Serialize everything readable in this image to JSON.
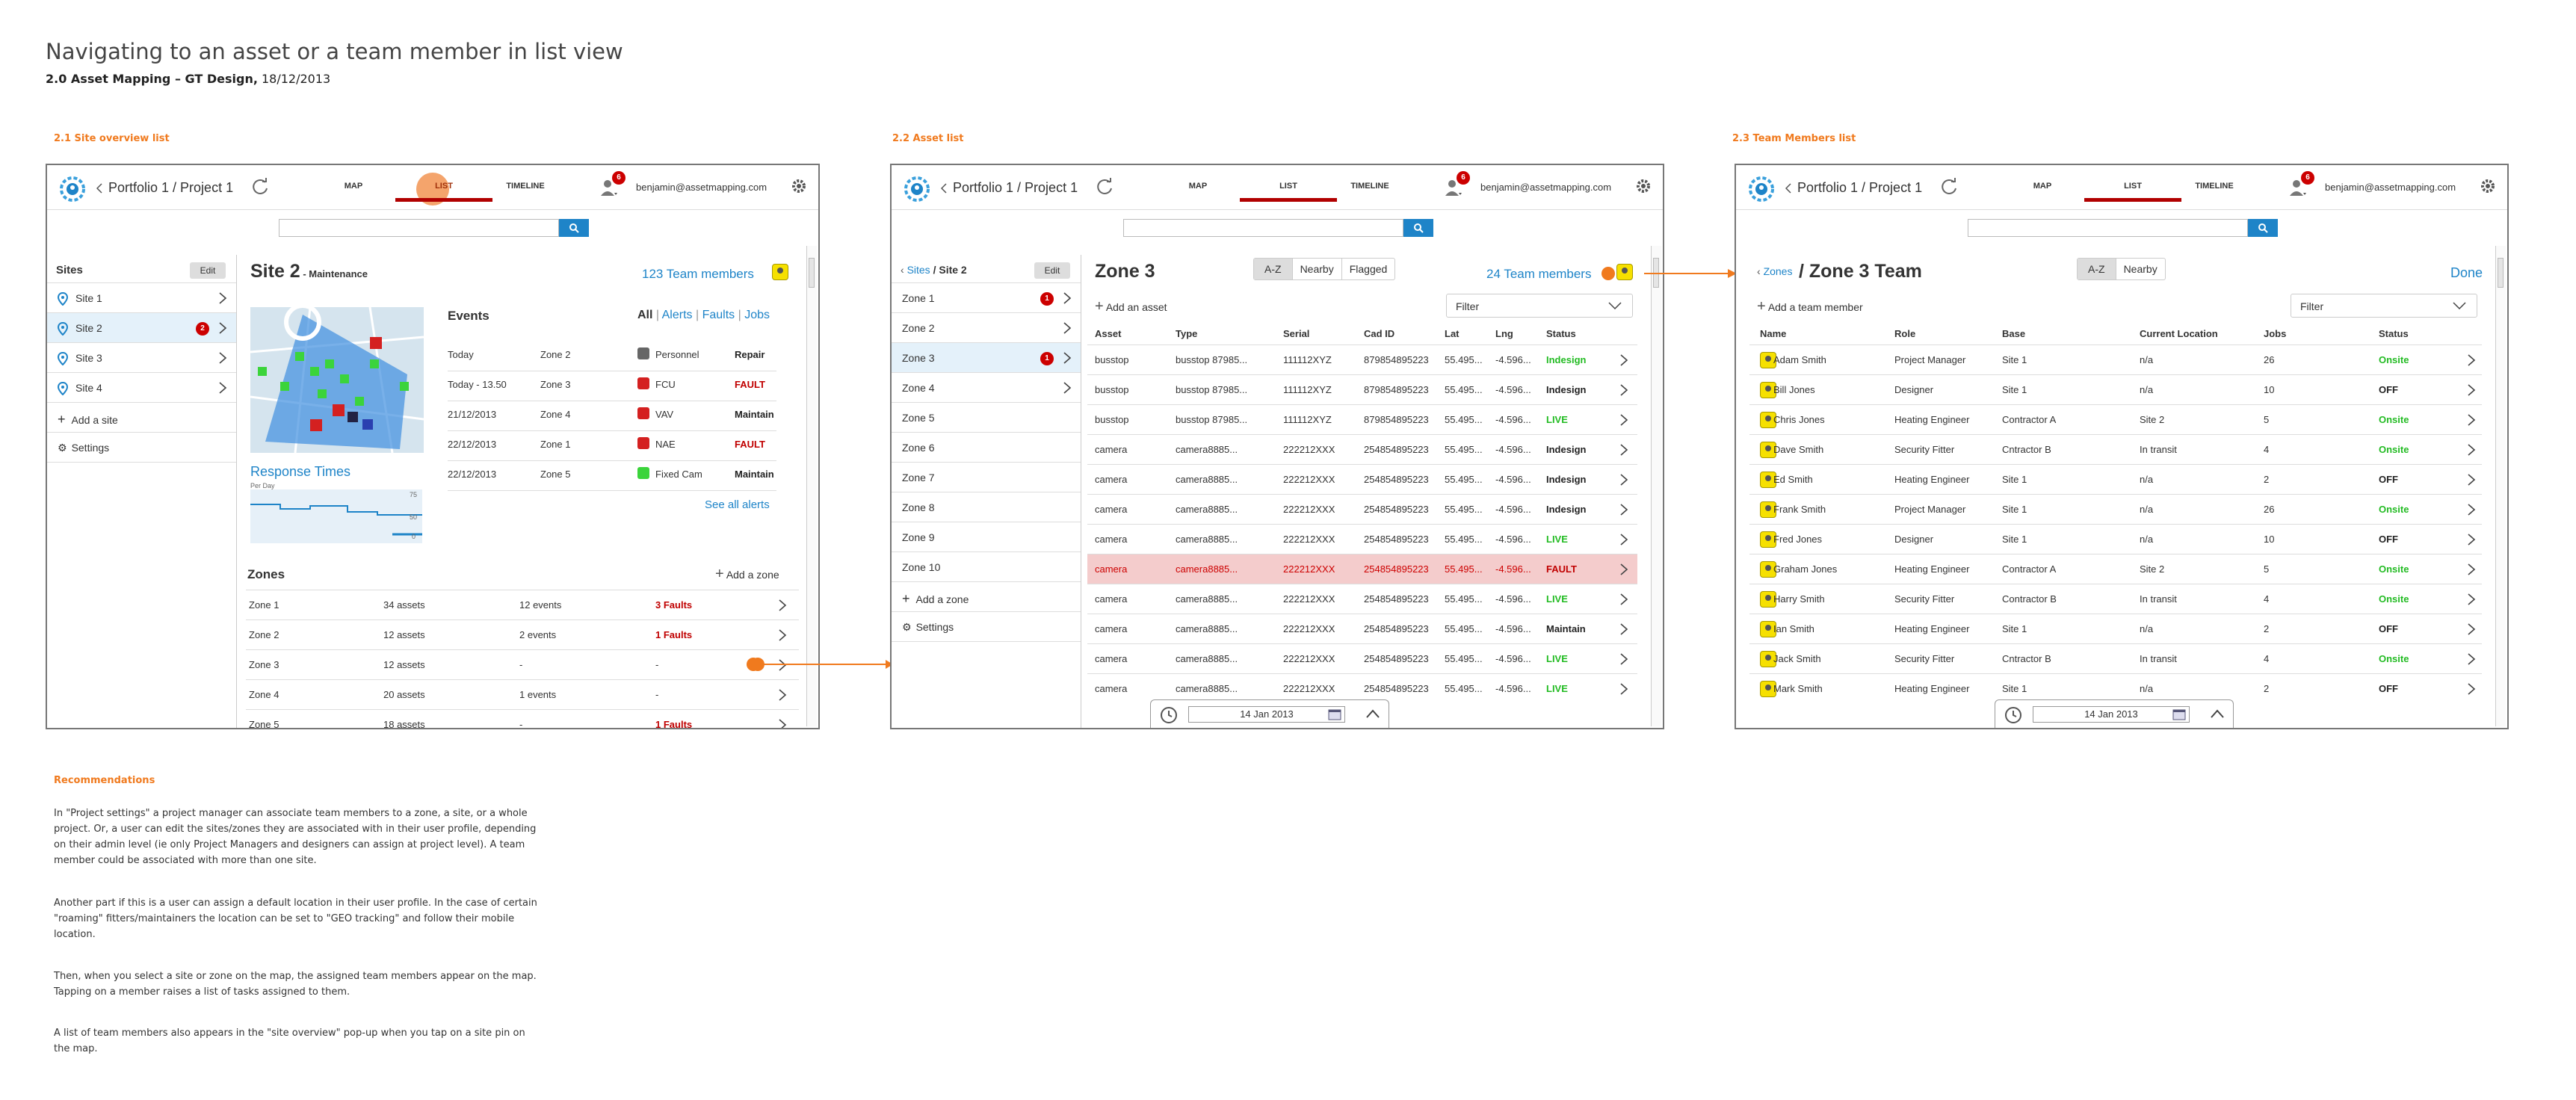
{
  "page": {
    "title": "Navigating to an asset or a team member in list view",
    "subtitle_bold": "2.0 Asset Mapping – GT Design,",
    "subtitle_rest": " 18/12/2013"
  },
  "sections": {
    "s1": "2.1 Site overview list",
    "s2": "2.2 Asset list",
    "s3": "2.3 Team Members list"
  },
  "topbar": {
    "breadcrumb": "Portfolio 1 / Project 1",
    "tab_map": "MAP",
    "tab_list": "LIST",
    "tab_timeline": "TIMELINE",
    "user": "benjamin@assetmapping.com",
    "notif_count": "6"
  },
  "win1": {
    "sites_header": "Sites",
    "edit": "Edit",
    "sites": [
      {
        "label": "Site 1",
        "badge": ""
      },
      {
        "label": "Site 2",
        "badge": "2"
      },
      {
        "label": "Site 3",
        "badge": ""
      },
      {
        "label": "Site 4",
        "badge": ""
      }
    ],
    "add_site": "Add a site",
    "settings": "Settings",
    "site_title": "Site 2",
    "site_status": " - Maintenance",
    "team_members": "123 Team members",
    "events_title": "Events",
    "filter_all": "All",
    "filter_alerts": "Alerts",
    "filter_faults": "Faults",
    "filter_jobs": "Jobs",
    "filter_sep": "|",
    "events": [
      {
        "date": "Today",
        "zone": "Zone 2",
        "type": "Personnel",
        "action": "Repair",
        "cls": "repair"
      },
      {
        "date": "Today - 13.50",
        "zone": "Zone 3",
        "type": "FCU",
        "action": "FAULT",
        "cls": "fault"
      },
      {
        "date": "21/12/2013",
        "zone": "Zone 4",
        "type": "VAV",
        "action": "Maintain",
        "cls": "maintain"
      },
      {
        "date": "22/12/2013",
        "zone": "Zone 1",
        "type": "NAE",
        "action": "FAULT",
        "cls": "fault"
      },
      {
        "date": "22/12/2013",
        "zone": "Zone 5",
        "type": "Fixed Cam",
        "action": "Maintain",
        "cls": "maintain"
      }
    ],
    "see_all": "See all alerts",
    "response_times": "Response Times",
    "per_day": "Per Day",
    "y_ticks": [
      "75",
      "50",
      "0"
    ],
    "zones_title": "Zones",
    "add_zone": "Add a zone",
    "zones": [
      {
        "name": "Zone 1",
        "assets": "34 assets",
        "events": "12 events",
        "faults": "3 Faults"
      },
      {
        "name": "Zone 2",
        "assets": "12 assets",
        "events": "2 events",
        "faults": "1 Faults"
      },
      {
        "name": "Zone 3",
        "assets": "12 assets",
        "events": "-",
        "faults": "-"
      },
      {
        "name": "Zone 4",
        "assets": "20 assets",
        "events": "1 events",
        "faults": "-"
      },
      {
        "name": "Zone 5",
        "assets": "18 assets",
        "events": "-",
        "faults": "1 Faults"
      }
    ]
  },
  "win2": {
    "crumb_sites": "Sites",
    "crumb_site": " / Site 2",
    "edit": "Edit",
    "zones": [
      {
        "label": "Zone 1",
        "badge": "1",
        "chev": true
      },
      {
        "label": "Zone 2",
        "badge": "",
        "chev": true
      },
      {
        "label": "Zone 3",
        "badge": "1",
        "chev": true
      },
      {
        "label": "Zone 4",
        "badge": "",
        "chev": true
      },
      {
        "label": "Zone 5",
        "badge": "",
        "chev": false
      },
      {
        "label": "Zone 6",
        "badge": "",
        "chev": false
      },
      {
        "label": "Zone 7",
        "badge": "",
        "chev": false
      },
      {
        "label": "Zone 8",
        "badge": "",
        "chev": false
      },
      {
        "label": "Zone 9",
        "badge": "",
        "chev": false
      },
      {
        "label": "Zone 10",
        "badge": "",
        "chev": false
      }
    ],
    "add_zone": "Add a zone",
    "settings": "Settings",
    "zone_title": "Zone 3",
    "seg": [
      "A-Z",
      "Nearby",
      "Flagged"
    ],
    "team_members": "24 Team members",
    "add_asset": "Add an asset",
    "filter": "Filter",
    "headers": [
      "Asset",
      "Type",
      "Serial",
      "Cad ID",
      "Lat",
      "Lng",
      "Status"
    ],
    "rows": [
      [
        "busstop",
        "busstop 87985...",
        "111112XYZ",
        "879854895223",
        "55.495...",
        "-4.596...",
        "Indesign",
        "indesign"
      ],
      [
        "busstop",
        "busstop 87985...",
        "111112XYZ",
        "879854895223",
        "55.495...",
        "-4.596...",
        "Indesign",
        "maintain"
      ],
      [
        "busstop",
        "busstop 87985...",
        "111112XYZ",
        "879854895223",
        "55.495...",
        "-4.596...",
        "LIVE",
        "live"
      ],
      [
        "camera",
        "camera8885...",
        "222212XXX",
        "254854895223",
        "55.495...",
        "-4.596...",
        "Indesign",
        "maintain"
      ],
      [
        "camera",
        "camera8885...",
        "222212XXX",
        "254854895223",
        "55.495...",
        "-4.596...",
        "Indesign",
        "maintain"
      ],
      [
        "camera",
        "camera8885...",
        "222212XXX",
        "254854895223",
        "55.495...",
        "-4.596...",
        "Indesign",
        "maintain"
      ],
      [
        "camera",
        "camera8885...",
        "222212XXX",
        "254854895223",
        "55.495...",
        "-4.596...",
        "LIVE",
        "live"
      ],
      [
        "camera",
        "camera8885...",
        "222212XXX",
        "254854895223",
        "55.495...",
        "-4.596...",
        "FAULT",
        "fault"
      ],
      [
        "camera",
        "camera8885...",
        "222212XXX",
        "254854895223",
        "55.495...",
        "-4.596...",
        "LIVE",
        "live"
      ],
      [
        "camera",
        "camera8885...",
        "222212XXX",
        "254854895223",
        "55.495...",
        "-4.596...",
        "Maintain",
        "maintain"
      ],
      [
        "camera",
        "camera8885...",
        "222212XXX",
        "254854895223",
        "55.495...",
        "-4.596...",
        "LIVE",
        "live"
      ],
      [
        "camera",
        "camera8885...",
        "222212XXX",
        "254854895223",
        "55.495...",
        "-4.596...",
        "LIVE",
        "live"
      ]
    ],
    "date": "14 Jan 2013"
  },
  "win3": {
    "crumb_zones": "Zones",
    "title": " / Zone 3 Team",
    "seg": [
      "A-Z",
      "Nearby"
    ],
    "done": "Done",
    "add_member": "Add a team member",
    "filter": "Filter",
    "headers": [
      "Name",
      "Role",
      "Base",
      "Current Location",
      "Jobs",
      "Status"
    ],
    "rows": [
      [
        "Adam Smith",
        "Project Manager",
        "Site 1",
        "n/a",
        "26",
        "Onsite"
      ],
      [
        "Bill Jones",
        "Designer",
        "Site 1",
        "n/a",
        "10",
        "OFF"
      ],
      [
        "Chris Jones",
        "Heating Engineer",
        "Contractor A",
        "Site 2",
        "5",
        "Onsite"
      ],
      [
        "Dave Smith",
        "Security Fitter",
        "Cntractor B",
        "In transit",
        "4",
        "Onsite"
      ],
      [
        "Ed Smith",
        "Heating Engineer",
        "Site 1",
        "n/a",
        "2",
        "OFF"
      ],
      [
        "Frank Smith",
        "Project Manager",
        "Site 1",
        "n/a",
        "26",
        "Onsite"
      ],
      [
        "Fred Jones",
        "Designer",
        "Site 1",
        "n/a",
        "10",
        "OFF"
      ],
      [
        "Graham Jones",
        "Heating Engineer",
        "Contractor A",
        "Site 2",
        "5",
        "Onsite"
      ],
      [
        "Harry Smith",
        "Security Fitter",
        "Contractor B",
        "In transit",
        "4",
        "Onsite"
      ],
      [
        "Ian Smith",
        "Heating Engineer",
        "Site 1",
        "n/a",
        "2",
        "OFF"
      ],
      [
        "Jack Smith",
        "Security Fitter",
        "Cntractor B",
        "In transit",
        "4",
        "Onsite"
      ],
      [
        "Mark Smith",
        "Heating Engineer",
        "Site 1",
        "n/a",
        "2",
        "OFF"
      ]
    ],
    "date": "14 Jan 2013"
  },
  "recommendations": {
    "title": "Recommendations",
    "p1": "In \"Project settings\" a project manager can associate team members to a zone, a site, or a whole project. Or, a user can edit the sites/zones they are associated with in their user profile, depending on their admin level (ie only Project Managers and designers can assign at project level). A team member could be associated with more than one site.",
    "p2": "Another part if this is a user can assign a default location in their user profile. In the case of certain \"roaming\" fitters/maintainers the location can be set to \"GEO tracking\"  and follow their mobile location.",
    "p3": "Then, when you select a site or zone on the map, the assigned team members appear on the map. Tapping on a member raises a list of tasks assigned to them.",
    "p4": "A list of team members also appears in the \"site overview\" pop-up when you tap on a site pin on the map."
  },
  "colors": {
    "accent_orange": "#f07a1e",
    "link_blue": "#1e84c8",
    "fault_red": "#c00000",
    "live_green": "#22bb22"
  }
}
